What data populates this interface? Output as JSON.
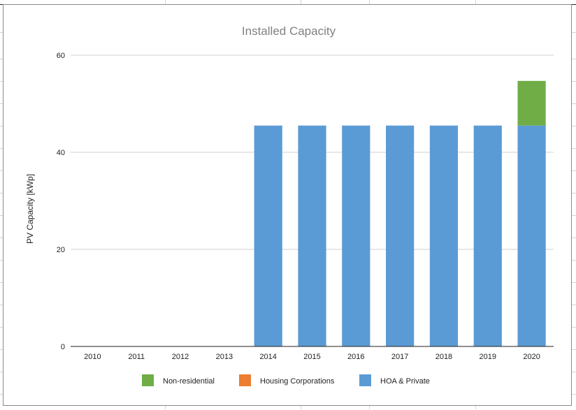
{
  "chart_data": {
    "type": "bar",
    "stacked": true,
    "title": "Installed Capacity",
    "xlabel": "",
    "ylabel": "PV Capacity [kWp]",
    "ylim": [
      0,
      60
    ],
    "yticks": [
      0,
      20,
      40,
      60
    ],
    "grid": true,
    "legend_position": "bottom",
    "categories": [
      "2010",
      "2011",
      "2012",
      "2013",
      "2014",
      "2015",
      "2016",
      "2017",
      "2018",
      "2019",
      "2020"
    ],
    "series": [
      {
        "name": "HOA & Private",
        "color": "#5b9bd5",
        "values": [
          0,
          0,
          0,
          0,
          45.5,
          45.5,
          45.5,
          45.5,
          45.5,
          45.5,
          45.5
        ]
      },
      {
        "name": "Housing Corporations",
        "color": "#ed7d31",
        "values": [
          0,
          0,
          0,
          0,
          0,
          0,
          0,
          0,
          0,
          0,
          0
        ]
      },
      {
        "name": "Non-residential",
        "color": "#70ad47",
        "values": [
          0,
          0,
          0,
          0,
          0,
          0,
          0,
          0,
          0,
          0,
          9.2
        ]
      }
    ],
    "legend_order": [
      "Non-residential",
      "Housing Corporations",
      "HOA & Private"
    ]
  }
}
